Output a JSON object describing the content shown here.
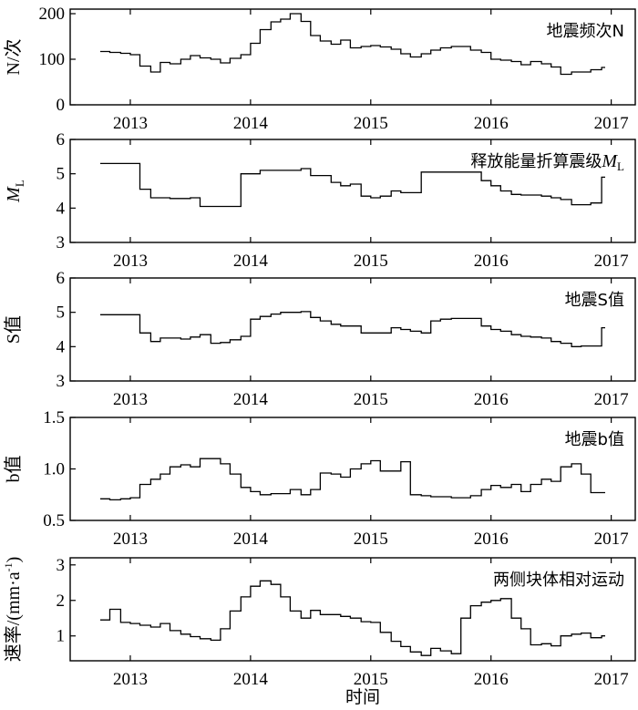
{
  "chart_data": [
    {
      "type": "line",
      "title": "地震频次N",
      "ylabel": "N/次",
      "ylim": [
        0,
        210
      ],
      "yticks": [
        0,
        100,
        200
      ],
      "xlim": [
        2012.5,
        2017.2
      ],
      "xticks": [
        2013,
        2014,
        2015,
        2016,
        2017
      ],
      "series": [
        {
          "x": [
            2012.75,
            2012.83,
            2012.92,
            2013.0,
            2013.08,
            2013.17,
            2013.25,
            2013.33,
            2013.42,
            2013.5,
            2013.58,
            2013.67,
            2013.75,
            2013.83,
            2013.92,
            2014.0,
            2014.08,
            2014.17,
            2014.25,
            2014.33,
            2014.42,
            2014.5,
            2014.58,
            2014.67,
            2014.75,
            2014.83,
            2014.92,
            2015.0,
            2015.08,
            2015.17,
            2015.25,
            2015.33,
            2015.42,
            2015.5,
            2015.58,
            2015.67,
            2015.75,
            2015.83,
            2015.92,
            2016.0,
            2016.08,
            2016.17,
            2016.25,
            2016.33,
            2016.42,
            2016.5,
            2016.58,
            2016.67,
            2016.75,
            2016.83,
            2016.92
          ],
          "y": [
            117,
            115,
            113,
            110,
            85,
            72,
            93,
            90,
            100,
            108,
            103,
            100,
            92,
            102,
            110,
            135,
            165,
            182,
            188,
            200,
            183,
            152,
            140,
            133,
            142,
            125,
            128,
            130,
            127,
            122,
            112,
            105,
            112,
            120,
            125,
            128,
            128,
            120,
            115,
            100,
            98,
            95,
            88,
            95,
            90,
            83,
            67,
            72,
            72,
            77,
            82
          ]
        }
      ]
    },
    {
      "type": "line",
      "title": "释放能量折算震级ML",
      "ylabel": "ML",
      "ylim": [
        3,
        6
      ],
      "yticks": [
        3,
        4,
        5,
        6
      ],
      "xlim": [
        2012.5,
        2017.2
      ],
      "xticks": [
        2013,
        2014,
        2015,
        2016,
        2017
      ],
      "series": [
        {
          "x": [
            2012.75,
            2013.08,
            2013.17,
            2013.33,
            2013.42,
            2013.5,
            2013.58,
            2013.75,
            2013.92,
            2014.08,
            2014.25,
            2014.42,
            2014.5,
            2014.67,
            2014.75,
            2014.83,
            2014.92,
            2015.0,
            2015.08,
            2015.17,
            2015.25,
            2015.42,
            2015.58,
            2015.75,
            2015.92,
            2016.0,
            2016.08,
            2016.17,
            2016.25,
            2016.42,
            2016.5,
            2016.58,
            2016.67,
            2016.75,
            2016.83,
            2016.92
          ],
          "y": [
            5.3,
            4.55,
            4.3,
            4.28,
            4.28,
            4.3,
            4.05,
            4.05,
            5.0,
            5.1,
            5.1,
            5.15,
            4.95,
            4.75,
            4.65,
            4.7,
            4.35,
            4.3,
            4.35,
            4.5,
            4.45,
            5.05,
            5.05,
            5.05,
            4.8,
            4.65,
            4.5,
            4.4,
            4.38,
            4.35,
            4.3,
            4.25,
            4.1,
            4.1,
            4.15,
            4.9
          ]
        }
      ]
    },
    {
      "type": "line",
      "title": "地震S值",
      "ylabel": "S值",
      "ylim": [
        3,
        6
      ],
      "yticks": [
        3,
        4,
        5,
        6
      ],
      "xlim": [
        2012.5,
        2017.2
      ],
      "xticks": [
        2013,
        2014,
        2015,
        2016,
        2017
      ],
      "series": [
        {
          "x": [
            2012.75,
            2013.08,
            2013.17,
            2013.25,
            2013.33,
            2013.42,
            2013.5,
            2013.58,
            2013.67,
            2013.75,
            2013.83,
            2013.92,
            2014.0,
            2014.08,
            2014.17,
            2014.25,
            2014.33,
            2014.42,
            2014.5,
            2014.58,
            2014.67,
            2014.75,
            2014.83,
            2014.92,
            2015.0,
            2015.08,
            2015.17,
            2015.25,
            2015.33,
            2015.42,
            2015.5,
            2015.58,
            2015.67,
            2015.75,
            2015.83,
            2015.92,
            2016.0,
            2016.08,
            2016.17,
            2016.25,
            2016.33,
            2016.42,
            2016.5,
            2016.58,
            2016.67,
            2016.75,
            2016.83,
            2016.92
          ],
          "y": [
            4.93,
            4.4,
            4.15,
            4.25,
            4.25,
            4.22,
            4.28,
            4.35,
            4.1,
            4.12,
            4.2,
            4.3,
            4.8,
            4.88,
            4.95,
            5.0,
            5.0,
            5.02,
            4.85,
            4.75,
            4.65,
            4.6,
            4.6,
            4.4,
            4.4,
            4.4,
            4.55,
            4.5,
            4.45,
            4.4,
            4.75,
            4.8,
            4.82,
            4.82,
            4.82,
            4.6,
            4.5,
            4.45,
            4.35,
            4.3,
            4.28,
            4.25,
            4.15,
            4.1,
            4.0,
            4.02,
            4.02,
            4.55
          ]
        }
      ]
    },
    {
      "type": "line",
      "title": "地震b值",
      "ylabel": "b值",
      "ylim": [
        0.5,
        1.5
      ],
      "yticks": [
        "0.5",
        "1.0",
        "1.5"
      ],
      "xlim": [
        2012.5,
        2017.2
      ],
      "xticks": [
        2013,
        2014,
        2015,
        2016,
        2017
      ],
      "series": [
        {
          "x": [
            2012.75,
            2012.83,
            2012.92,
            2013.0,
            2013.08,
            2013.17,
            2013.25,
            2013.33,
            2013.42,
            2013.5,
            2013.58,
            2013.67,
            2013.75,
            2013.83,
            2013.92,
            2014.0,
            2014.08,
            2014.17,
            2014.25,
            2014.33,
            2014.42,
            2014.5,
            2014.58,
            2014.67,
            2014.75,
            2014.83,
            2014.92,
            2015.0,
            2015.08,
            2015.17,
            2015.25,
            2015.33,
            2015.42,
            2015.5,
            2015.58,
            2015.67,
            2015.75,
            2015.83,
            2015.92,
            2016.0,
            2016.08,
            2016.17,
            2016.25,
            2016.33,
            2016.42,
            2016.5,
            2016.58,
            2016.67,
            2016.75,
            2016.83,
            2016.92
          ],
          "y": [
            0.71,
            0.7,
            0.71,
            0.72,
            0.85,
            0.9,
            0.95,
            1.02,
            1.04,
            1.02,
            1.1,
            1.1,
            1.05,
            0.95,
            0.82,
            0.78,
            0.75,
            0.76,
            0.76,
            0.8,
            0.75,
            0.8,
            0.96,
            0.95,
            0.92,
            1.0,
            1.05,
            1.08,
            0.98,
            0.98,
            1.07,
            0.75,
            0.74,
            0.73,
            0.73,
            0.72,
            0.72,
            0.74,
            0.8,
            0.84,
            0.82,
            0.85,
            0.78,
            0.85,
            0.9,
            0.88,
            1.02,
            1.05,
            0.95,
            0.77,
            0.77
          ]
        }
      ]
    },
    {
      "type": "line",
      "title": "两侧块体相对运动",
      "ylabel": "速率/(mm·a-1)",
      "ylim": [
        0.3,
        3.2
      ],
      "yticks": [
        1,
        2,
        3
      ],
      "xlim": [
        2012.5,
        2017.2
      ],
      "xticks": [
        2013,
        2014,
        2015,
        2016,
        2017
      ],
      "xlabel": "时间",
      "series": [
        {
          "x": [
            2012.75,
            2012.83,
            2012.92,
            2013.0,
            2013.08,
            2013.17,
            2013.25,
            2013.33,
            2013.42,
            2013.5,
            2013.58,
            2013.67,
            2013.75,
            2013.83,
            2013.92,
            2014.0,
            2014.08,
            2014.17,
            2014.25,
            2014.33,
            2014.42,
            2014.5,
            2014.58,
            2014.67,
            2014.75,
            2014.83,
            2014.92,
            2015.0,
            2015.08,
            2015.17,
            2015.25,
            2015.33,
            2015.42,
            2015.5,
            2015.58,
            2015.67,
            2015.75,
            2015.83,
            2015.92,
            2016.0,
            2016.08,
            2016.17,
            2016.25,
            2016.33,
            2016.42,
            2016.5,
            2016.58,
            2016.67,
            2016.75,
            2016.83,
            2016.92
          ],
          "y": [
            1.45,
            1.75,
            1.38,
            1.35,
            1.3,
            1.25,
            1.35,
            1.15,
            1.05,
            0.98,
            0.92,
            0.88,
            1.2,
            1.7,
            2.1,
            2.4,
            2.55,
            2.45,
            2.1,
            1.7,
            1.5,
            1.72,
            1.6,
            1.6,
            1.55,
            1.5,
            1.4,
            1.38,
            1.1,
            0.85,
            0.7,
            0.55,
            0.45,
            0.65,
            0.58,
            0.5,
            1.5,
            1.85,
            1.95,
            2.0,
            2.05,
            1.5,
            1.2,
            0.75,
            0.78,
            0.72,
            1.0,
            1.05,
            1.08,
            0.95,
            1.0
          ]
        }
      ]
    }
  ]
}
